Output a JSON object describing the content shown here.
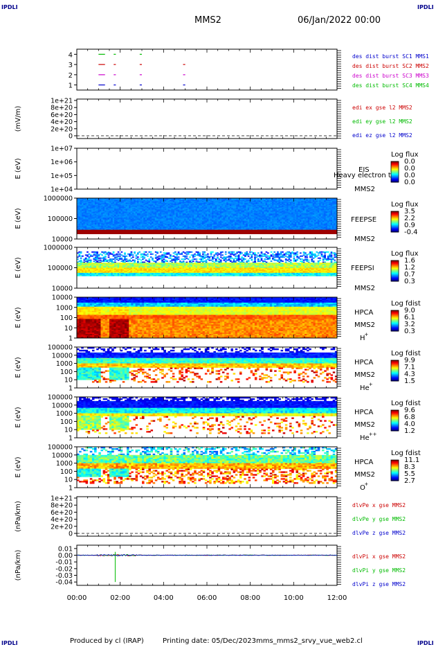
{
  "corner_label": "IPDLI",
  "header": {
    "spacecraft": "MMS2",
    "date": "06/Jan/2022 00:00"
  },
  "footer": {
    "produced": "Produced by cl (IRAP)",
    "printing": "Printing date: 05/Dec/2023",
    "script": "mms_mms2_srvy_vue_web2.cl"
  },
  "chart_data": [
    {
      "type": "line",
      "panel": "des-dist-burst",
      "ylim": [
        0.5,
        4.5
      ],
      "yticks": [
        "1",
        "2",
        "3",
        "4"
      ],
      "series": [
        {
          "name": "des dist burst SC1 MMS1",
          "y": 1,
          "color": "#0000cc",
          "segments": [
            [
              1.0,
              1.3
            ],
            [
              1.7,
              1.8
            ],
            [
              2.9,
              3.0
            ],
            [
              4.9,
              5.0
            ]
          ]
        },
        {
          "name": "des dist burst SC2 MMS2",
          "y": 3,
          "color": "#cc0000",
          "segments": [
            [
              1.0,
              1.3
            ],
            [
              1.7,
              1.8
            ],
            [
              2.9,
              3.0
            ],
            [
              4.9,
              5.0
            ]
          ]
        },
        {
          "name": "des dist burst SC3 MMS3",
          "y": 2,
          "color": "#cc00cc",
          "segments": [
            [
              1.0,
              1.3
            ],
            [
              1.7,
              1.8
            ],
            [
              2.9,
              3.0
            ],
            [
              4.9,
              5.0
            ]
          ]
        },
        {
          "name": "des dist burst SC4 MMS4",
          "y": 4,
          "color": "#00bb00",
          "segments": [
            [
              1.0,
              1.3
            ],
            [
              1.7,
              1.8
            ],
            [
              2.9,
              3.0
            ]
          ]
        }
      ],
      "legend_colors": [
        "#0000cc",
        "#cc00cc",
        "#cc0000",
        "#00bb00"
      ]
    },
    {
      "type": "line",
      "panel": "edi-e",
      "ylabel": "(mV/m)",
      "yticks": [
        "0",
        "2e+20",
        "4e+20",
        "6e+20",
        "8e+20",
        "1e+21"
      ],
      "series": [
        {
          "name": "edi ex gse l2 MMS2",
          "color": "#cc0000"
        },
        {
          "name": "edi ey gse l2 MMS2",
          "color": "#00bb00"
        },
        {
          "name": "edi ez gse l2 MMS2",
          "color": "#0000cc"
        }
      ]
    },
    {
      "type": "heatmap",
      "panel": "eis",
      "ylabel": "E (eV)",
      "yticks": [
        "1e+04",
        "1e+05",
        "1e+06",
        "1e+07"
      ],
      "labels": [
        "EIS",
        "MMS2"
      ],
      "overlay": "Heavy electron to",
      "colorbar": {
        "title": "Log flux",
        "ticks": [
          "0.0",
          "0.0",
          "0.0",
          "0.0"
        ]
      }
    },
    {
      "type": "heatmap",
      "panel": "feeps-e",
      "ylabel": "E (eV)",
      "yticks": [
        "10000",
        "100000",
        "1000000"
      ],
      "labels": [
        "FEEPSE",
        "MMS2"
      ],
      "colorbar": {
        "title": "Log flux",
        "ticks": [
          "3.5",
          "2.2",
          "0.9",
          "-0.4"
        ]
      }
    },
    {
      "type": "heatmap",
      "panel": "feeps-i",
      "ylabel": "E (eV)",
      "yticks": [
        "10000",
        "100000",
        "1000000"
      ],
      "labels": [
        "FEEPSI",
        "MMS2"
      ],
      "colorbar": {
        "title": "Log flux",
        "ticks": [
          "1.6",
          "1.2",
          "0.7",
          "0.3"
        ]
      }
    },
    {
      "type": "heatmap",
      "panel": "hpca-h",
      "ylabel": "E (eV)",
      "yticks": [
        "1",
        "10",
        "100",
        "1000",
        "10000"
      ],
      "labels": [
        "HPCA",
        "MMS2"
      ],
      "species": "H",
      "charge": "+",
      "colorbar": {
        "title": "Log fdist",
        "ticks": [
          "9.0",
          "6.1",
          "3.2",
          "0.3"
        ]
      }
    },
    {
      "type": "heatmap",
      "panel": "hpca-he",
      "ylabel": "E (eV)",
      "yticks": [
        "1",
        "10",
        "100",
        "1000",
        "10000",
        "100000"
      ],
      "labels": [
        "HPCA",
        "MMS2"
      ],
      "species": "He",
      "charge": "+",
      "colorbar": {
        "title": "Log fdist",
        "ticks": [
          "9.9",
          "7.1",
          "4.3",
          "1.5"
        ]
      }
    },
    {
      "type": "heatmap",
      "panel": "hpca-he2",
      "ylabel": "E (eV)",
      "yticks": [
        "1",
        "10",
        "100",
        "1000",
        "10000",
        "100000"
      ],
      "labels": [
        "HPCA",
        "MMS2"
      ],
      "species": "He",
      "charge": "++",
      "colorbar": {
        "title": "Log fdist",
        "ticks": [
          "9.6",
          "6.8",
          "4.0",
          "1.2"
        ]
      }
    },
    {
      "type": "heatmap",
      "panel": "hpca-o",
      "ylabel": "E (eV)",
      "yticks": [
        "1",
        "10",
        "100",
        "1000",
        "10000",
        "100000"
      ],
      "labels": [
        "HPCA",
        "MMS2"
      ],
      "species": "O",
      "charge": "+",
      "colorbar": {
        "title": "Log fdist",
        "ticks": [
          "11.1",
          "8.3",
          "5.5",
          "2.7"
        ]
      }
    },
    {
      "type": "line",
      "panel": "dvpe",
      "ylabel": "(nPa/km)",
      "yticks": [
        "0",
        "2e+20",
        "4e+20",
        "6e+20",
        "8e+20",
        "1e+21"
      ],
      "series": [
        {
          "name": "dlvPe x gse MMS2",
          "color": "#cc0000"
        },
        {
          "name": "dlvPe y gse MMS2",
          "color": "#00bb00"
        },
        {
          "name": "dlvPe z gse MMS2",
          "color": "#0000cc"
        }
      ]
    },
    {
      "type": "line",
      "panel": "dvpi",
      "ylabel": "(nPa/km)",
      "ylim": [
        -0.045,
        0.015
      ],
      "yticks": [
        "-0.04",
        "-0.03",
        "-0.02",
        "-0.01",
        "0.00",
        "0.01"
      ],
      "series": [
        {
          "name": "dlvPi x gse MMS2",
          "color": "#cc0000"
        },
        {
          "name": "dlvPi y gse MMS2",
          "color": "#00bb00",
          "spike": {
            "x": 1.77,
            "y": -0.04
          }
        },
        {
          "name": "dlvPi z gse MMS2",
          "color": "#0000cc"
        }
      ]
    }
  ],
  "xaxis": {
    "ticks": [
      "00:00",
      "02:00",
      "04:00",
      "06:00",
      "08:00",
      "10:00",
      "12:00"
    ],
    "range_hours": [
      0,
      12
    ]
  }
}
